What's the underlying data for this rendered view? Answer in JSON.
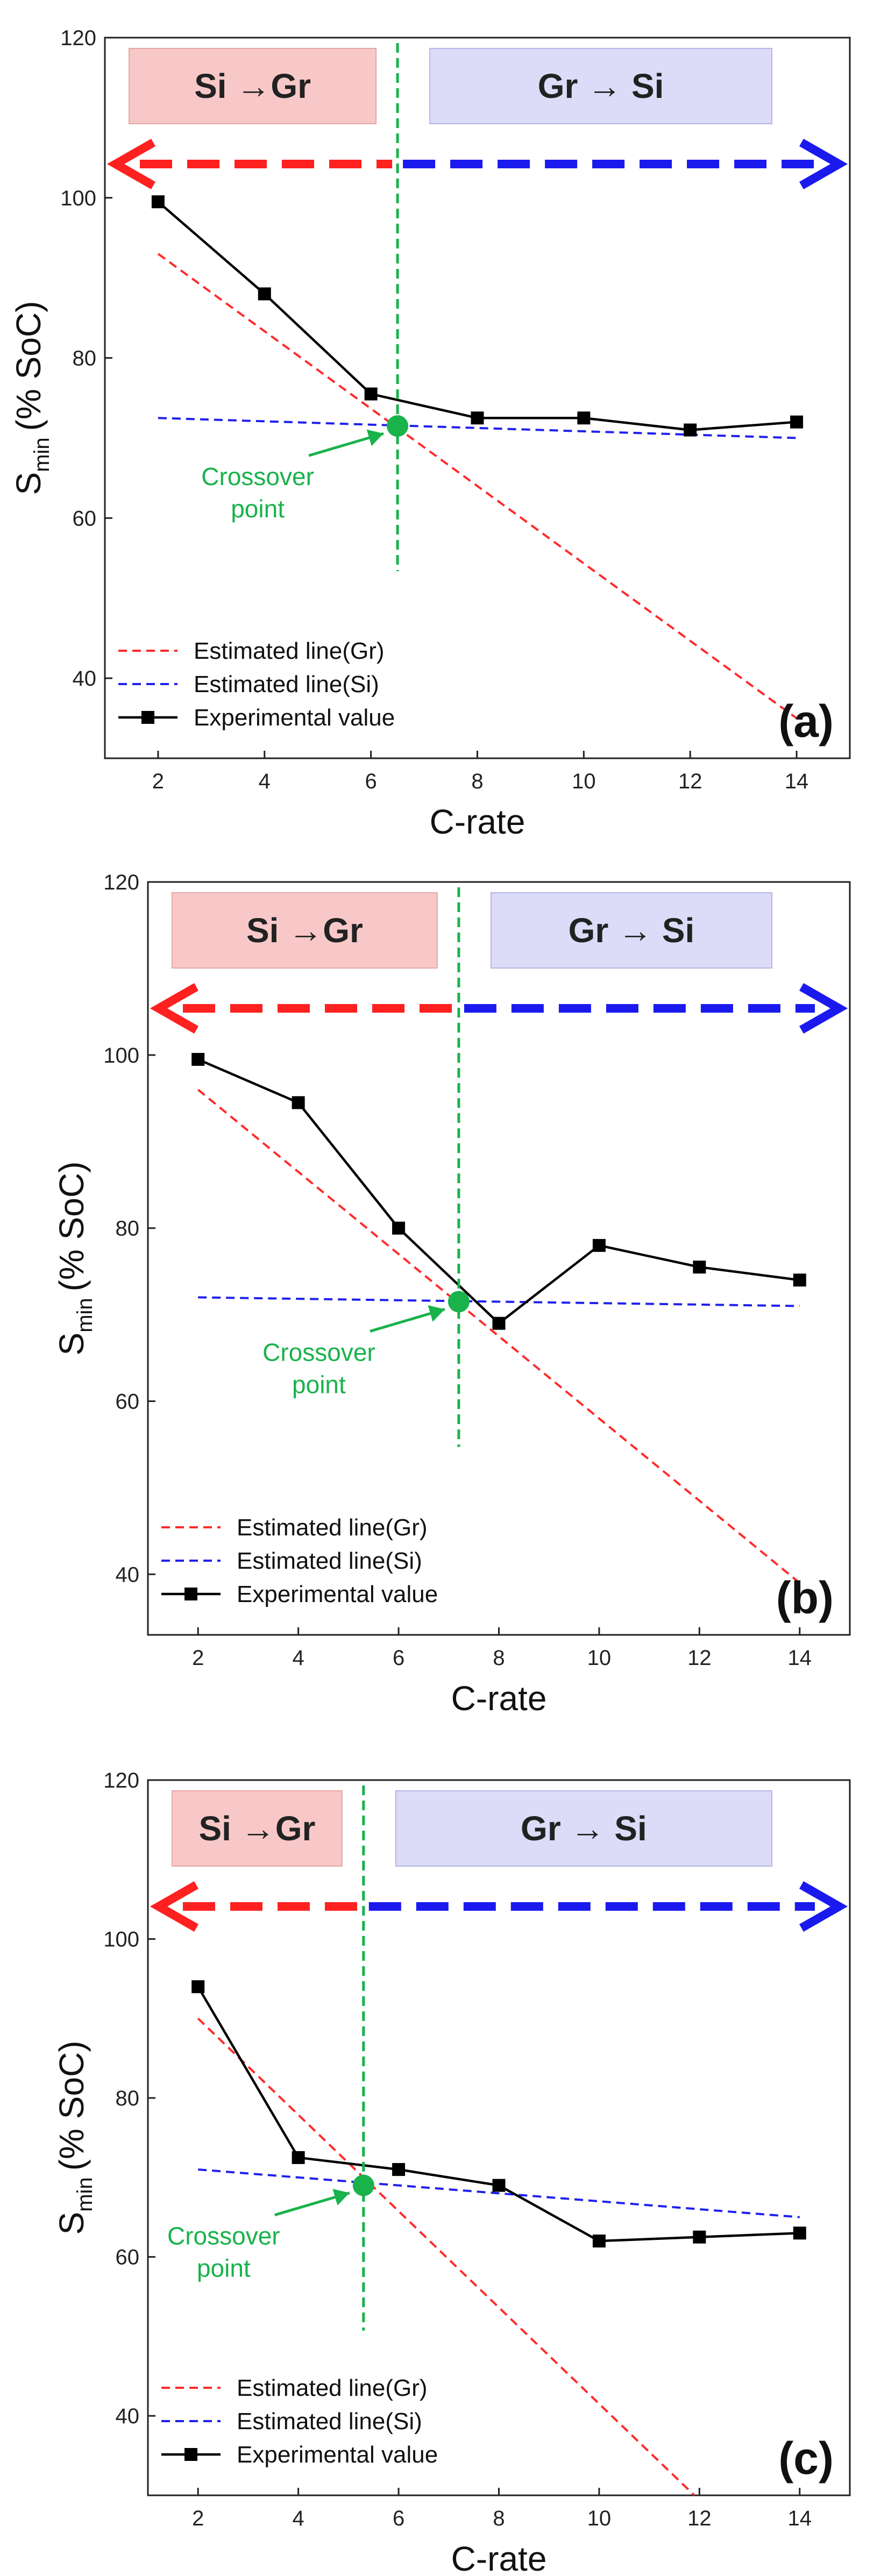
{
  "colors": {
    "gr_line": "#ff2a2a",
    "si_line": "#2020ee",
    "experimental": "#000000",
    "crossover": "#19b24b",
    "arrow_left": "#ff2020",
    "arrow_right": "#1a1aee",
    "box_si_gr_fill": "#f8c8c8",
    "box_gr_si_fill": "#dcdcf8"
  },
  "chart_data": [
    {
      "panel_label": "(a)",
      "type": "line",
      "xlabel": "C-rate",
      "ylabel_main": "S",
      "ylabel_sub": "min",
      "ylabel_unit": "(% SoC)",
      "xlim": [
        1,
        15
      ],
      "ylim": [
        30,
        120
      ],
      "xticks": [
        2,
        4,
        6,
        8,
        10,
        12,
        14
      ],
      "yticks": [
        40,
        60,
        80,
        100,
        120
      ],
      "region_left_label": "Si →Gr",
      "region_right_label": "Gr → Si",
      "crossover_label_line1": "Crossover",
      "crossover_label_line2": "point",
      "crossover": {
        "x": 6.5,
        "y": 71.5
      },
      "series": [
        {
          "name": "Estimated line(Gr)",
          "style": "dashed-red",
          "x": [
            2,
            14
          ],
          "y": [
            93,
            35
          ]
        },
        {
          "name": "Estimated line(Si)",
          "style": "dashed-blue",
          "x": [
            2,
            14
          ],
          "y": [
            72.5,
            70
          ]
        },
        {
          "name": "Experimental value",
          "style": "solid-square",
          "x": [
            2,
            4,
            6,
            8,
            10,
            12,
            14
          ],
          "y": [
            99.5,
            88,
            75.5,
            72.5,
            72.5,
            71,
            72
          ]
        }
      ]
    },
    {
      "panel_label": "(b)",
      "type": "line",
      "xlabel": "C-rate",
      "ylabel_main": "S",
      "ylabel_sub": "min",
      "ylabel_unit": "(% SoC)",
      "xlim": [
        1,
        15
      ],
      "ylim": [
        33,
        120
      ],
      "xticks": [
        2,
        4,
        6,
        8,
        10,
        12,
        14
      ],
      "yticks": [
        40,
        60,
        80,
        100,
        120
      ],
      "region_left_label": "Si →Gr",
      "region_right_label": "Gr → Si",
      "crossover_label_line1": "Crossover",
      "crossover_label_line2": "point",
      "crossover": {
        "x": 7.2,
        "y": 71.5
      },
      "series": [
        {
          "name": "Estimated line(Gr)",
          "style": "dashed-red",
          "x": [
            2,
            14
          ],
          "y": [
            96,
            39
          ]
        },
        {
          "name": "Estimated line(Si)",
          "style": "dashed-blue",
          "x": [
            2,
            14
          ],
          "y": [
            72,
            71
          ]
        },
        {
          "name": "Experimental value",
          "style": "solid-square",
          "x": [
            2,
            4,
            6,
            8,
            10,
            12,
            14
          ],
          "y": [
            99.5,
            94.5,
            80,
            69,
            78,
            75.5,
            74
          ]
        }
      ]
    },
    {
      "panel_label": "(c)",
      "type": "line",
      "xlabel": "C-rate",
      "ylabel_main": "S",
      "ylabel_sub": "min",
      "ylabel_unit": "(% SoC)",
      "xlim": [
        1,
        15
      ],
      "ylim": [
        30,
        120
      ],
      "xticks": [
        2,
        4,
        6,
        8,
        10,
        12,
        14
      ],
      "yticks": [
        40,
        60,
        80,
        100,
        120
      ],
      "region_left_label": "Si →Gr",
      "region_right_label": "Gr → Si",
      "crossover_label_line1": "Crossover",
      "crossover_label_line2": "point",
      "crossover": {
        "x": 5.3,
        "y": 69
      },
      "series": [
        {
          "name": "Estimated line(Gr)",
          "style": "dashed-red",
          "x": [
            2,
            11.9
          ],
          "y": [
            90,
            30
          ]
        },
        {
          "name": "Estimated line(Si)",
          "style": "dashed-blue",
          "x": [
            2,
            14
          ],
          "y": [
            71,
            65
          ]
        },
        {
          "name": "Experimental value",
          "style": "solid-square",
          "x": [
            2,
            4,
            6,
            8,
            10,
            12,
            14
          ],
          "y": [
            94,
            72.5,
            71,
            69,
            62,
            62.5,
            63
          ]
        }
      ]
    }
  ]
}
